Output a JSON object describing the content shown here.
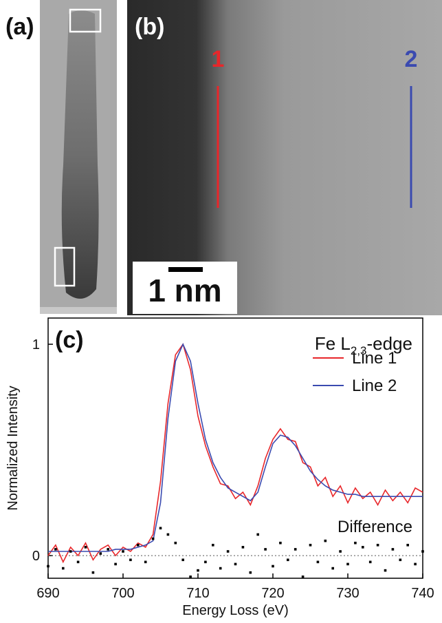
{
  "figure": {
    "panel_a": "(a)",
    "panel_b": "(b)",
    "line_labels": [
      "1",
      "2"
    ],
    "scale_bar": "1 nm"
  },
  "chart_data": {
    "type": "line",
    "panel_label": "(c)",
    "annotation": {
      "main": "Fe L",
      "sub": "2,3",
      "rest": "-edge"
    },
    "x_label": "Energy Loss (eV)",
    "y_label": "Normalized Intensity",
    "x": [
      690,
      691,
      692,
      693,
      694,
      695,
      696,
      697,
      698,
      699,
      700,
      701,
      702,
      703,
      704,
      705,
      706,
      707,
      708,
      709,
      710,
      711,
      712,
      713,
      714,
      715,
      716,
      717,
      718,
      719,
      720,
      721,
      722,
      723,
      724,
      725,
      726,
      727,
      728,
      729,
      730,
      731,
      732,
      733,
      734,
      735,
      736,
      737,
      738,
      739,
      740
    ],
    "series": [
      {
        "name": "Line 1",
        "color": "#e8262a",
        "legend": true,
        "values": [
          0.0,
          0.05,
          -0.03,
          0.04,
          0.0,
          0.06,
          -0.02,
          0.03,
          0.05,
          0.0,
          0.04,
          0.02,
          0.06,
          0.04,
          0.1,
          0.35,
          0.72,
          0.95,
          1.0,
          0.88,
          0.66,
          0.52,
          0.42,
          0.34,
          0.33,
          0.27,
          0.3,
          0.24,
          0.33,
          0.46,
          0.55,
          0.6,
          0.55,
          0.54,
          0.44,
          0.42,
          0.33,
          0.37,
          0.28,
          0.33,
          0.25,
          0.32,
          0.27,
          0.3,
          0.24,
          0.31,
          0.26,
          0.3,
          0.25,
          0.32,
          0.3
        ]
      },
      {
        "name": "Line 2",
        "color": "#3a4ab0",
        "legend": true,
        "values": [
          0.02,
          0.02,
          0.02,
          0.02,
          0.02,
          0.02,
          0.02,
          0.02,
          0.02,
          0.03,
          0.03,
          0.03,
          0.04,
          0.05,
          0.07,
          0.25,
          0.65,
          0.92,
          1.0,
          0.92,
          0.72,
          0.55,
          0.44,
          0.37,
          0.32,
          0.3,
          0.28,
          0.26,
          0.3,
          0.42,
          0.53,
          0.57,
          0.56,
          0.52,
          0.46,
          0.4,
          0.36,
          0.33,
          0.31,
          0.3,
          0.29,
          0.29,
          0.28,
          0.28,
          0.28,
          0.28,
          0.28,
          0.28,
          0.28,
          0.28,
          0.28
        ]
      },
      {
        "name": "Difference",
        "color": "#000000",
        "legend": false,
        "marker": "square",
        "values": [
          -0.05,
          0.03,
          -0.06,
          0.02,
          -0.03,
          0.04,
          -0.08,
          0.01,
          0.03,
          -0.04,
          0.02,
          -0.02,
          0.05,
          -0.03,
          0.08,
          0.13,
          0.1,
          0.06,
          -0.02,
          -0.1,
          -0.07,
          -0.03,
          0.05,
          -0.06,
          0.02,
          -0.04,
          0.04,
          -0.08,
          0.1,
          0.03,
          -0.05,
          0.06,
          -0.02,
          0.03,
          -0.1,
          0.05,
          -0.03,
          0.07,
          -0.06,
          0.02,
          -0.04,
          0.06,
          0.04,
          -0.03,
          0.05,
          -0.07,
          0.03,
          -0.02,
          0.05,
          -0.04,
          0.02
        ]
      }
    ],
    "xlim": [
      690,
      740
    ],
    "xticks": [
      690,
      700,
      710,
      720,
      730,
      740
    ],
    "ylim": [
      -0.107,
      1.124
    ],
    "yticks": [
      0,
      1
    ],
    "zero_line": true
  }
}
